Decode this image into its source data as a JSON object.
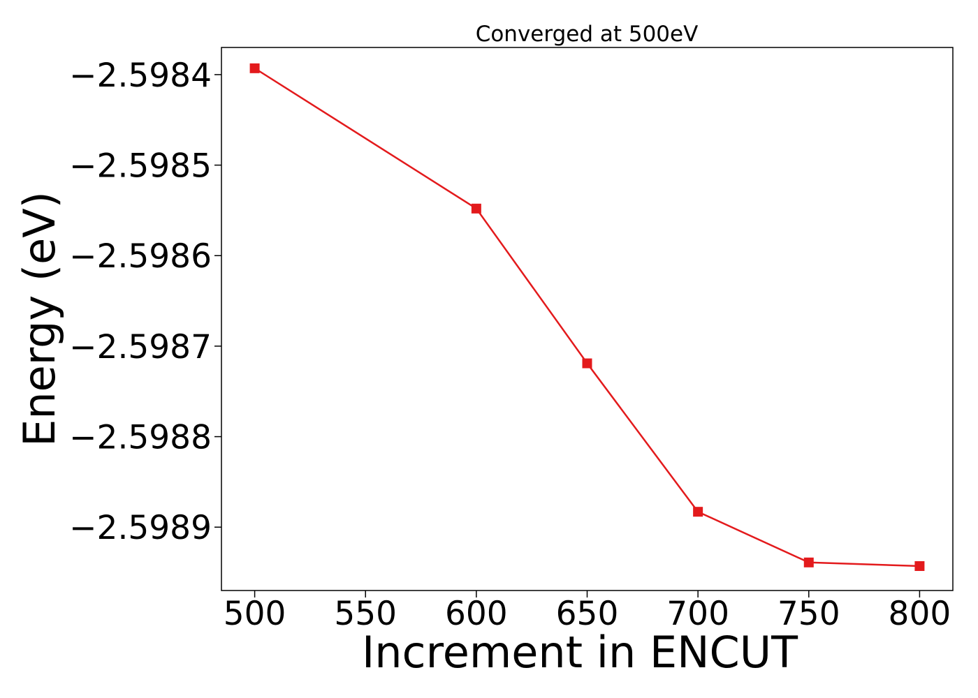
{
  "chart_data": {
    "type": "line",
    "title": "Converged at 500eV",
    "xlabel": "Increment in ENCUT",
    "ylabel": "Energy (eV)",
    "xlim": [
      485,
      815
    ],
    "ylim": [
      -2.59897,
      -2.59837
    ],
    "xticks": [
      500,
      550,
      600,
      650,
      700,
      750,
      800
    ],
    "xtick_labels": [
      "500",
      "550",
      "600",
      "650",
      "700",
      "750",
      "800"
    ],
    "yticks": [
      -2.5984,
      -2.5985,
      -2.5986,
      -2.5987,
      -2.5988,
      -2.5989
    ],
    "ytick_labels": [
      "−2.5984",
      "−2.5985",
      "−2.5986",
      "−2.5987",
      "−2.5988",
      "−2.5989"
    ],
    "grid": false,
    "series": [
      {
        "color": "#e31a1c",
        "marker": "square",
        "x": [
          500,
          600,
          650,
          700,
          750,
          800
        ],
        "y": [
          -2.598393,
          -2.598548,
          -2.598719,
          -2.598883,
          -2.598939,
          -2.598943
        ]
      }
    ]
  }
}
